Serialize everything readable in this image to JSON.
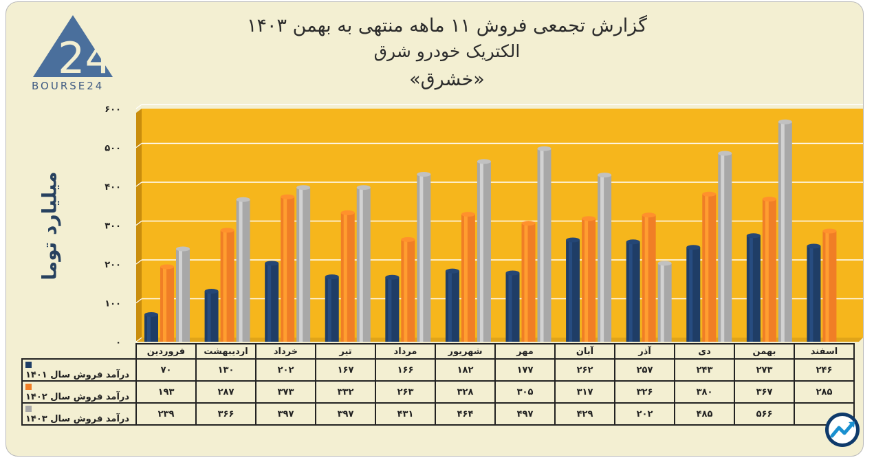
{
  "header": {
    "title_line1": "گزارش تجمعی فروش ۱۱ ماهه منتهی به بهمن ۱۴۰۳",
    "title_line2": "الکتریک خودرو شرق",
    "title_line3": "«خشرق»"
  },
  "logo": {
    "text": "BOURSE24",
    "mark": "24"
  },
  "colors": {
    "series1401": "#1f3d66",
    "series1402": "#f07e26",
    "series1403": "#a8a8a8",
    "plot_bg": "#f6b61c"
  },
  "icons": {
    "corner": "trend-chart-icon"
  },
  "chart_data": {
    "type": "bar",
    "ylabel": "میلیارد توما",
    "ylim": [
      0,
      600
    ],
    "yticks": [
      "۰",
      "۱۰۰",
      "۲۰۰",
      "۳۰۰",
      "۴۰۰",
      "۵۰۰",
      "۶۰۰"
    ],
    "ytick_values": [
      0,
      100,
      200,
      300,
      400,
      500,
      600
    ],
    "categories": [
      "فروردین",
      "اردیبهشت",
      "خرداد",
      "تیر",
      "مرداد",
      "شهریور",
      "مهر",
      "آبان",
      "آذر",
      "دی",
      "بهمن",
      "اسفند"
    ],
    "series": [
      {
        "name": "درآمد فروش سال ۱۴۰۱",
        "values": [
          70,
          130,
          202,
          167,
          166,
          182,
          177,
          262,
          257,
          243,
          273,
          246
        ],
        "labels": [
          "۷۰",
          "۱۳۰",
          "۲۰۲",
          "۱۶۷",
          "۱۶۶",
          "۱۸۲",
          "۱۷۷",
          "۲۶۲",
          "۲۵۷",
          "۲۴۳",
          "۲۷۳",
          "۲۴۶"
        ]
      },
      {
        "name": "درآمد فروش سال ۱۴۰۲",
        "values": [
          193,
          287,
          373,
          332,
          263,
          328,
          305,
          317,
          326,
          380,
          367,
          285
        ],
        "labels": [
          "۱۹۳",
          "۲۸۷",
          "۳۷۳",
          "۳۳۲",
          "۲۶۳",
          "۳۲۸",
          "۳۰۵",
          "۳۱۷",
          "۳۲۶",
          "۳۸۰",
          "۳۶۷",
          "۲۸۵"
        ]
      },
      {
        "name": "درآمد فروش سال ۱۴۰۳",
        "values": [
          239,
          366,
          397,
          397,
          431,
          464,
          497,
          429,
          202,
          485,
          566,
          null
        ],
        "labels": [
          "۲۳۹",
          "۳۶۶",
          "۳۹۷",
          "۳۹۷",
          "۴۳۱",
          "۴۶۴",
          "۴۹۷",
          "۴۲۹",
          "۲۰۲",
          "۴۸۵",
          "۵۶۶",
          ""
        ]
      }
    ],
    "grid": true,
    "legend": "table-below"
  }
}
